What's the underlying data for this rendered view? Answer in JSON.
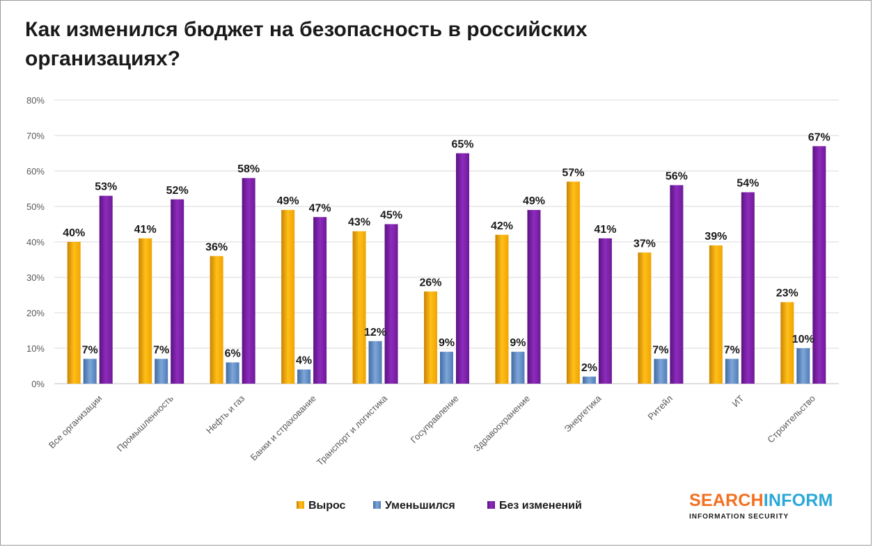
{
  "chart_data": {
    "type": "bar",
    "title": "Как изменился бюджет на безопасность в российских организациях?",
    "categories": [
      "Все организации",
      "Промышленность",
      "Нефть и газ",
      "Банки и страхование",
      "Транспорт и логистика",
      "Госуправление",
      "Здравоохранение",
      "Энергетика",
      "Ритейл",
      "ИТ",
      "Строительство"
    ],
    "series": [
      {
        "name": "Вырос",
        "values": [
          40,
          41,
          36,
          49,
          43,
          26,
          42,
          57,
          37,
          39,
          23
        ],
        "color": "#f5a800"
      },
      {
        "name": "Уменьшился",
        "values": [
          7,
          7,
          6,
          4,
          12,
          9,
          9,
          2,
          7,
          7,
          10
        ],
        "color": "#5b86c0"
      },
      {
        "name": "Без изменений",
        "values": [
          53,
          52,
          58,
          47,
          45,
          65,
          49,
          41,
          56,
          54,
          67
        ],
        "color": "#7a1fa2"
      }
    ],
    "ylim": [
      0,
      80
    ],
    "yticks": [
      0,
      10,
      20,
      30,
      40,
      50,
      60,
      70,
      80
    ],
    "value_suffix": "%",
    "grid": true,
    "legend_position": "bottom",
    "xlabel": "",
    "ylabel": ""
  },
  "logo": {
    "part1": "SEARCH",
    "part2": "INFORM",
    "subtitle": "INFORMATION SECURITY"
  }
}
